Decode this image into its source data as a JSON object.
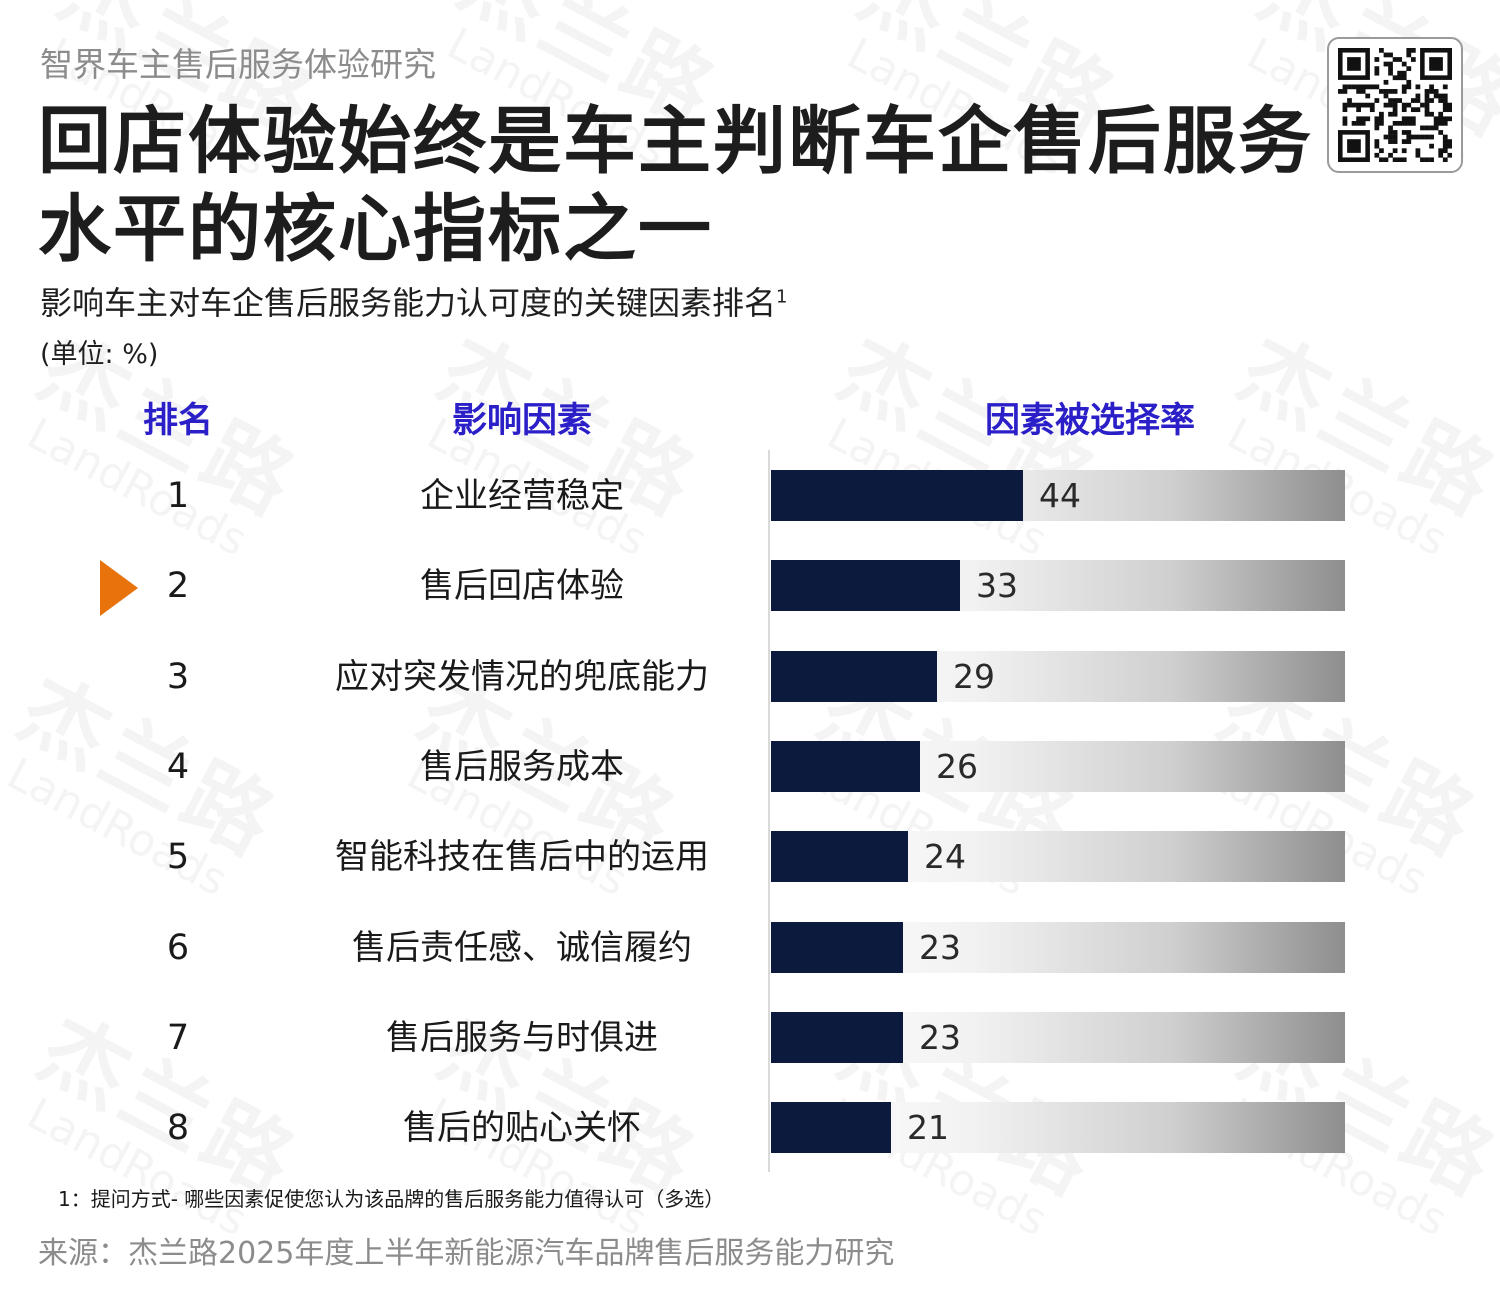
{
  "brand_title": "智界车主售后服务体验研究",
  "main_title": "回店体验始终是车主判断车企售后服务水平的核心指标之一",
  "chart_title": "影响车主对车企售后服务能力认可度的关键因素排名",
  "chart_title_note": "1",
  "unit": "(单位: %)",
  "headers": {
    "rank": "排名",
    "factor": "影响因素",
    "rate": "因素被选择率"
  },
  "watermark": {
    "cn": "杰兰路",
    "en": "LandRoads"
  },
  "qr_icon": "qr-code-icon",
  "marker_icon": "orange-triangle-icon",
  "highlight_rank": 2,
  "colors": {
    "bar": "#0c1a3d",
    "header": "#2b1fc8",
    "marker": "#e8720c"
  },
  "chart_data": {
    "type": "bar",
    "orientation": "horizontal",
    "ranks": [
      "1",
      "2",
      "3",
      "4",
      "5",
      "6",
      "7",
      "8"
    ],
    "categories": [
      "企业经营稳定",
      "售后回店体验",
      "应对突发情况的兜底能力",
      "售后服务成本",
      "智能科技在售后中的运用",
      "售后责任感、诚信履约",
      "售后服务与时俱进",
      "售后的贴心关怀"
    ],
    "values": [
      44,
      33,
      29,
      26,
      24,
      23,
      23,
      21
    ],
    "xlim": [
      0,
      100
    ],
    "grid": false,
    "legend": "none"
  },
  "footnote": "1：提问方式- 哪些因素促使您认为该品牌的售后服务能力值得认可（多选）",
  "source": "来源：杰兰路2025年度上半年新能源汽车品牌售后服务能力研究"
}
